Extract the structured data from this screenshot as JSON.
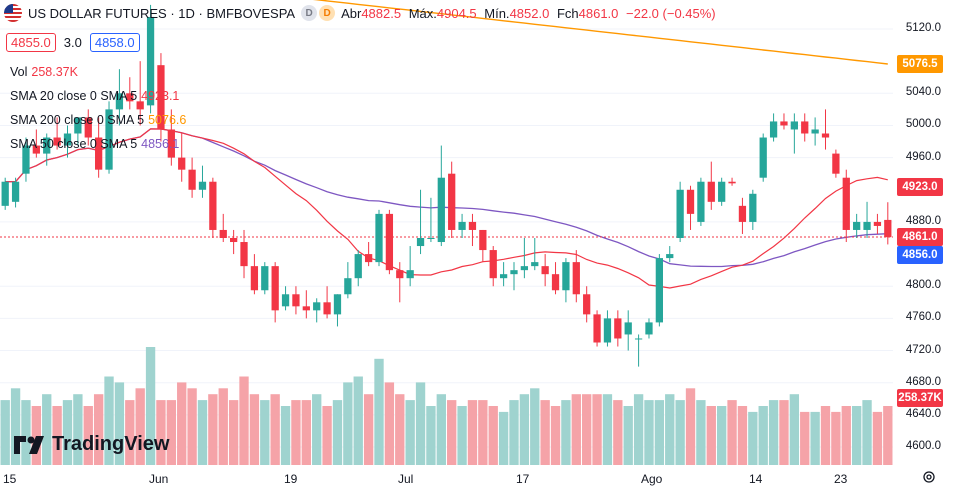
{
  "header": {
    "symbol": "US DOLLAR FUTURES",
    "interval": "1D",
    "exchange": "BMFBOVESPA",
    "badge_1": "D",
    "badge_2": "D",
    "ohlc": {
      "open_label": "Abr",
      "open": "4882.5",
      "high_label": "Máx.",
      "high": "4904.5",
      "low_label": "Mín.",
      "low": "4852.0",
      "close_label": "Fch",
      "close": "4861.0",
      "change": "−22.0 (−0.45%)"
    }
  },
  "trade": {
    "sell": "4855.0",
    "spread": "3.0",
    "buy": "4858.0"
  },
  "indicators": [
    {
      "label": "Vol",
      "value": "258.37K",
      "color": "#f23645"
    },
    {
      "label": "SMA 20 close 0 SMA 5",
      "value": "4923.1",
      "color": "#f23645"
    },
    {
      "label": "SMA 200 close 0 SMA 5",
      "value": "5076.6",
      "color": "#ff9800"
    },
    {
      "label": "SMA 50 close 0 SMA 5",
      "value": "4856.1",
      "color": "#7e57c2"
    }
  ],
  "y_axis": {
    "ticks": [
      "5120.0",
      "5040.0",
      "5000.0",
      "4960.0",
      "4880.0",
      "4800.0",
      "4760.0",
      "4720.0",
      "4680.0",
      "4640.0",
      "4600.0"
    ],
    "tags": [
      {
        "label": "5076.5",
        "color": "#ff9800",
        "value": 5076.5
      },
      {
        "label": "4923.0",
        "color": "#f23645",
        "value": 4923.0
      },
      {
        "label": "4861.0",
        "color": "#f23645",
        "value": 4861.0
      },
      {
        "label": "4856.0",
        "color": "#2962ff",
        "value": 4856.0
      },
      {
        "label": "258.37K",
        "color": "#f23645",
        "value": 258.37
      }
    ]
  },
  "x_axis": {
    "labels": [
      "15",
      "Jun",
      "19",
      "Jul",
      "17",
      "Ago",
      "14",
      "23"
    ]
  },
  "logo": "TradingView",
  "colors": {
    "up": "#26a69a",
    "down": "#f23645",
    "vol_up": "#9fd3cf",
    "vol_down": "#f5a3a8",
    "sma20": "#f23645",
    "sma50": "#7e57c2",
    "sma200": "#ff9800"
  },
  "chart_data": {
    "type": "candlestick",
    "title": "US DOLLAR FUTURES · 1D · BMFBOVESPA",
    "ylim": [
      4580,
      5140
    ],
    "candles": [
      {
        "o": 4900,
        "h": 4935,
        "l": 4895,
        "c": 4930
      },
      {
        "o": 4905,
        "h": 4935,
        "l": 4898,
        "c": 4930
      },
      {
        "o": 4940,
        "h": 4985,
        "l": 4930,
        "c": 4975
      },
      {
        "o": 4975,
        "h": 4995,
        "l": 4960,
        "c": 4965
      },
      {
        "o": 4965,
        "h": 4990,
        "l": 4950,
        "c": 4985
      },
      {
        "o": 4985,
        "h": 5010,
        "l": 4970,
        "c": 4975
      },
      {
        "o": 4975,
        "h": 5000,
        "l": 4960,
        "c": 4990
      },
      {
        "o": 4990,
        "h": 5010,
        "l": 4975,
        "c": 5010
      },
      {
        "o": 5010,
        "h": 5020,
        "l": 4975,
        "c": 4985
      },
      {
        "o": 4985,
        "h": 5010,
        "l": 4935,
        "c": 4945
      },
      {
        "o": 4945,
        "h": 5030,
        "l": 4940,
        "c": 5020
      },
      {
        "o": 5020,
        "h": 5070,
        "l": 5000,
        "c": 5040
      },
      {
        "o": 5040,
        "h": 5060,
        "l": 5020,
        "c": 5030
      },
      {
        "o": 5030,
        "h": 5080,
        "l": 5000,
        "c": 5020
      },
      {
        "o": 5025,
        "h": 5150,
        "l": 5015,
        "c": 5135
      },
      {
        "o": 5075,
        "h": 5090,
        "l": 4980,
        "c": 4995
      },
      {
        "o": 4995,
        "h": 5020,
        "l": 4950,
        "c": 4960
      },
      {
        "o": 4960,
        "h": 4990,
        "l": 4930,
        "c": 4945
      },
      {
        "o": 4945,
        "h": 4960,
        "l": 4910,
        "c": 4920
      },
      {
        "o": 4920,
        "h": 4950,
        "l": 4910,
        "c": 4930
      },
      {
        "o": 4930,
        "h": 4935,
        "l": 4860,
        "c": 4870
      },
      {
        "o": 4870,
        "h": 4890,
        "l": 4855,
        "c": 4860
      },
      {
        "o": 4860,
        "h": 4870,
        "l": 4840,
        "c": 4855
      },
      {
        "o": 4855,
        "h": 4870,
        "l": 4810,
        "c": 4825
      },
      {
        "o": 4825,
        "h": 4840,
        "l": 4790,
        "c": 4795
      },
      {
        "o": 4795,
        "h": 4830,
        "l": 4790,
        "c": 4825
      },
      {
        "o": 4825,
        "h": 4830,
        "l": 4755,
        "c": 4770
      },
      {
        "o": 4775,
        "h": 4800,
        "l": 4770,
        "c": 4790
      },
      {
        "o": 4790,
        "h": 4800,
        "l": 4765,
        "c": 4775
      },
      {
        "o": 4775,
        "h": 4795,
        "l": 4760,
        "c": 4770
      },
      {
        "o": 4770,
        "h": 4785,
        "l": 4755,
        "c": 4780
      },
      {
        "o": 4780,
        "h": 4800,
        "l": 4760,
        "c": 4765
      },
      {
        "o": 4765,
        "h": 4790,
        "l": 4750,
        "c": 4790
      },
      {
        "o": 4790,
        "h": 4830,
        "l": 4785,
        "c": 4810
      },
      {
        "o": 4810,
        "h": 4845,
        "l": 4800,
        "c": 4840
      },
      {
        "o": 4840,
        "h": 4855,
        "l": 4825,
        "c": 4830
      },
      {
        "o": 4830,
        "h": 4895,
        "l": 4825,
        "c": 4890
      },
      {
        "o": 4890,
        "h": 4895,
        "l": 4815,
        "c": 4820
      },
      {
        "o": 4820,
        "h": 4830,
        "l": 4780,
        "c": 4810
      },
      {
        "o": 4810,
        "h": 4850,
        "l": 4800,
        "c": 4820
      },
      {
        "o": 4850,
        "h": 4920,
        "l": 4840,
        "c": 4860
      },
      {
        "o": 4860,
        "h": 4910,
        "l": 4855,
        "c": 4860
      },
      {
        "o": 4855,
        "h": 4975,
        "l": 4850,
        "c": 4935
      },
      {
        "o": 4940,
        "h": 4955,
        "l": 4860,
        "c": 4870
      },
      {
        "o": 4870,
        "h": 4890,
        "l": 4860,
        "c": 4880
      },
      {
        "o": 4880,
        "h": 4890,
        "l": 4850,
        "c": 4870
      },
      {
        "o": 4870,
        "h": 4870,
        "l": 4830,
        "c": 4845
      },
      {
        "o": 4845,
        "h": 4850,
        "l": 4800,
        "c": 4810
      },
      {
        "o": 4810,
        "h": 4830,
        "l": 4800,
        "c": 4815
      },
      {
        "o": 4815,
        "h": 4830,
        "l": 4795,
        "c": 4820
      },
      {
        "o": 4820,
        "h": 4860,
        "l": 4810,
        "c": 4825
      },
      {
        "o": 4825,
        "h": 4860,
        "l": 4820,
        "c": 4830
      },
      {
        "o": 4825,
        "h": 4840,
        "l": 4800,
        "c": 4815
      },
      {
        "o": 4815,
        "h": 4830,
        "l": 4790,
        "c": 4795
      },
      {
        "o": 4795,
        "h": 4835,
        "l": 4780,
        "c": 4830
      },
      {
        "o": 4830,
        "h": 4845,
        "l": 4780,
        "c": 4790
      },
      {
        "o": 4790,
        "h": 4800,
        "l": 4755,
        "c": 4765
      },
      {
        "o": 4765,
        "h": 4770,
        "l": 4725,
        "c": 4730
      },
      {
        "o": 4730,
        "h": 4770,
        "l": 4725,
        "c": 4760
      },
      {
        "o": 4760,
        "h": 4770,
        "l": 4725,
        "c": 4735
      },
      {
        "o": 4740,
        "h": 4770,
        "l": 4720,
        "c": 4755
      },
      {
        "o": 4735,
        "h": 4740,
        "l": 4700,
        "c": 4735
      },
      {
        "o": 4740,
        "h": 4760,
        "l": 4735,
        "c": 4755
      },
      {
        "o": 4755,
        "h": 4840,
        "l": 4750,
        "c": 4835
      },
      {
        "o": 4835,
        "h": 4850,
        "l": 4830,
        "c": 4840
      },
      {
        "o": 4860,
        "h": 4930,
        "l": 4855,
        "c": 4920
      },
      {
        "o": 4920,
        "h": 4925,
        "l": 4870,
        "c": 4890
      },
      {
        "o": 4880,
        "h": 4935,
        "l": 4875,
        "c": 4930
      },
      {
        "o": 4930,
        "h": 4955,
        "l": 4895,
        "c": 4905
      },
      {
        "o": 4905,
        "h": 4935,
        "l": 4900,
        "c": 4930
      },
      {
        "o": 4930,
        "h": 4935,
        "l": 4925,
        "c": 4928
      },
      {
        "o": 4900,
        "h": 4910,
        "l": 4865,
        "c": 4880
      },
      {
        "o": 4880,
        "h": 4920,
        "l": 4870,
        "c": 4915
      },
      {
        "o": 4935,
        "h": 4990,
        "l": 4930,
        "c": 4985
      },
      {
        "o": 4985,
        "h": 5015,
        "l": 4980,
        "c": 5005
      },
      {
        "o": 5005,
        "h": 5015,
        "l": 4995,
        "c": 5000
      },
      {
        "o": 4995,
        "h": 5015,
        "l": 4965,
        "c": 5005
      },
      {
        "o": 5005,
        "h": 5015,
        "l": 4980,
        "c": 4990
      },
      {
        "o": 4990,
        "h": 5010,
        "l": 4975,
        "c": 4995
      },
      {
        "o": 4990,
        "h": 5020,
        "l": 4970,
        "c": 4985
      },
      {
        "o": 4965,
        "h": 4970,
        "l": 4935,
        "c": 4940
      },
      {
        "o": 4935,
        "h": 4945,
        "l": 4855,
        "c": 4870
      },
      {
        "o": 4870,
        "h": 4890,
        "l": 4860,
        "c": 4880
      },
      {
        "o": 4870,
        "h": 4905,
        "l": 4860,
        "c": 4880
      },
      {
        "o": 4880,
        "h": 4890,
        "l": 4865,
        "c": 4875
      },
      {
        "o": 4882.5,
        "h": 4904.5,
        "l": 4852,
        "c": 4861
      }
    ],
    "volume_relative": [
      0.55,
      0.65,
      0.55,
      0.5,
      0.6,
      0.5,
      0.55,
      0.6,
      0.5,
      0.6,
      0.75,
      0.7,
      0.55,
      0.65,
      1.0,
      0.55,
      0.55,
      0.7,
      0.65,
      0.55,
      0.6,
      0.65,
      0.55,
      0.75,
      0.6,
      0.55,
      0.6,
      0.5,
      0.55,
      0.55,
      0.6,
      0.5,
      0.55,
      0.7,
      0.75,
      0.6,
      0.9,
      0.7,
      0.6,
      0.55,
      0.7,
      0.5,
      0.6,
      0.55,
      0.5,
      0.55,
      0.55,
      0.5,
      0.45,
      0.55,
      0.6,
      0.65,
      0.55,
      0.5,
      0.55,
      0.6,
      0.6,
      0.6,
      0.6,
      0.55,
      0.5,
      0.6,
      0.55,
      0.55,
      0.6,
      0.55,
      0.65,
      0.55,
      0.5,
      0.5,
      0.55,
      0.5,
      0.45,
      0.5,
      0.55,
      0.55,
      0.6,
      0.45,
      0.45,
      0.5,
      0.45,
      0.5,
      0.5,
      0.55,
      0.45,
      0.5
    ]
  }
}
